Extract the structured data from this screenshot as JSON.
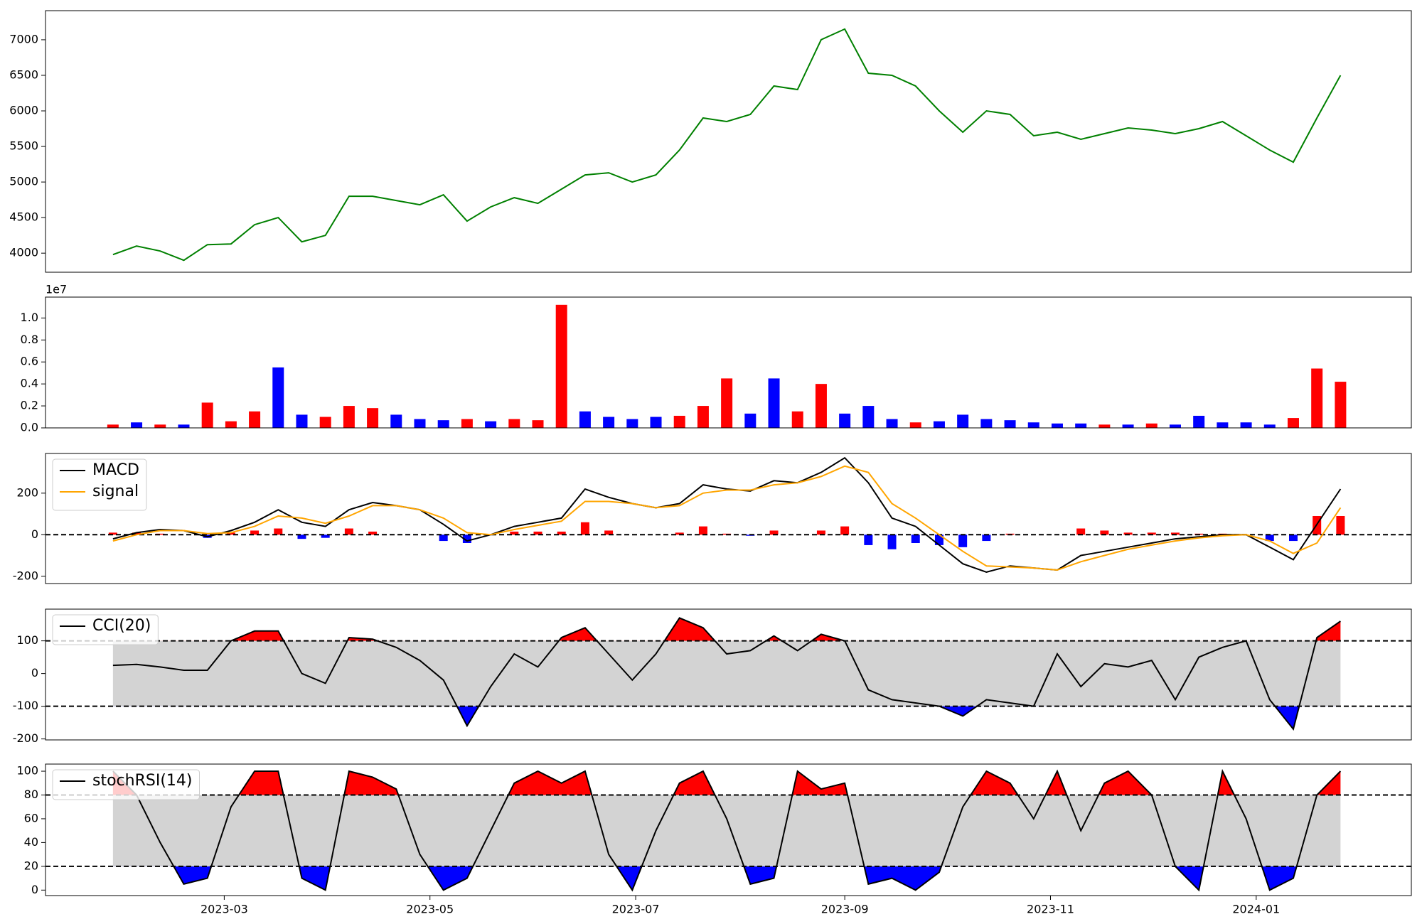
{
  "chart_data": [
    {
      "type": "line",
      "x": [
        "2023-01-27",
        "2023-02-03",
        "2023-02-10",
        "2023-02-17",
        "2023-02-24",
        "2023-03-03",
        "2023-03-10",
        "2023-03-17",
        "2023-03-24",
        "2023-03-31",
        "2023-04-07",
        "2023-04-14",
        "2023-04-21",
        "2023-04-28",
        "2023-05-05",
        "2023-05-12",
        "2023-05-19",
        "2023-05-26",
        "2023-06-02",
        "2023-06-09",
        "2023-06-16",
        "2023-06-23",
        "2023-06-30",
        "2023-07-07",
        "2023-07-14",
        "2023-07-21",
        "2023-07-28",
        "2023-08-04",
        "2023-08-11",
        "2023-08-18",
        "2023-08-25",
        "2023-09-01",
        "2023-09-08",
        "2023-09-15",
        "2023-09-22",
        "2023-09-29",
        "2023-10-06",
        "2023-10-13",
        "2023-10-20",
        "2023-10-27",
        "2023-11-03",
        "2023-11-10",
        "2023-11-17",
        "2023-11-24",
        "2023-12-01",
        "2023-12-08",
        "2023-12-15",
        "2023-12-22",
        "2023-12-29",
        "2024-01-05",
        "2024-01-12",
        "2024-01-19",
        "2024-01-26"
      ],
      "series": [
        {
          "color": "green",
          "values": [
            3980,
            4100,
            4030,
            3900,
            4120,
            4130,
            4400,
            4500,
            4160,
            4250,
            4800,
            4800,
            4740,
            4680,
            4820,
            4450,
            4650,
            4780,
            4700,
            4900,
            5100,
            5130,
            5000,
            5100,
            5450,
            5900,
            5850,
            5950,
            6350,
            6300,
            7000,
            7150,
            6530,
            6500,
            6350,
            6000,
            5700,
            6000,
            5950,
            5650,
            5700,
            5600,
            5680,
            5760,
            5730,
            5680,
            5750,
            5850,
            5650,
            5450,
            5280,
            5900,
            6500
          ]
        }
      ],
      "xlim": [
        "2023-01-07",
        "2024-02-16"
      ],
      "ylim": [
        3732,
        7409
      ],
      "yticks": [
        4000,
        4500,
        5000,
        5500,
        6000,
        6500,
        7000
      ]
    },
    {
      "type": "bar",
      "x": [
        "2023-01-27",
        "2023-02-03",
        "2023-02-10",
        "2023-02-17",
        "2023-02-24",
        "2023-03-03",
        "2023-03-10",
        "2023-03-17",
        "2023-03-24",
        "2023-03-31",
        "2023-04-07",
        "2023-04-14",
        "2023-04-21",
        "2023-04-28",
        "2023-05-05",
        "2023-05-12",
        "2023-05-19",
        "2023-05-26",
        "2023-06-02",
        "2023-06-09",
        "2023-06-16",
        "2023-06-23",
        "2023-06-30",
        "2023-07-07",
        "2023-07-14",
        "2023-07-21",
        "2023-07-28",
        "2023-08-04",
        "2023-08-11",
        "2023-08-18",
        "2023-08-25",
        "2023-09-01",
        "2023-09-08",
        "2023-09-15",
        "2023-09-22",
        "2023-09-29",
        "2023-10-06",
        "2023-10-13",
        "2023-10-20",
        "2023-10-27",
        "2023-11-03",
        "2023-11-10",
        "2023-11-17",
        "2023-11-24",
        "2023-12-01",
        "2023-12-08",
        "2023-12-15",
        "2023-12-22",
        "2023-12-29",
        "2024-01-05",
        "2024-01-12",
        "2024-01-19",
        "2024-01-26"
      ],
      "values": [
        0.03,
        0.05,
        0.03,
        0.03,
        0.23,
        0.06,
        0.15,
        0.55,
        0.12,
        0.1,
        0.2,
        0.18,
        0.12,
        0.08,
        0.07,
        0.08,
        0.06,
        0.08,
        0.07,
        1.12,
        0.15,
        0.1,
        0.08,
        0.1,
        0.11,
        0.2,
        0.45,
        0.13,
        0.45,
        0.15,
        0.4,
        0.13,
        0.2,
        0.08,
        0.05,
        0.06,
        0.12,
        0.08,
        0.07,
        0.05,
        0.04,
        0.04,
        0.03,
        0.03,
        0.04,
        0.03,
        0.11,
        0.05,
        0.05,
        0.03,
        0.09,
        0.54,
        0.42
      ],
      "colors": [
        "red",
        "blue",
        "red",
        "blue",
        "red",
        "red",
        "red",
        "blue",
        "blue",
        "red",
        "red",
        "red",
        "blue",
        "blue",
        "blue",
        "red",
        "blue",
        "red",
        "red",
        "red",
        "blue",
        "blue",
        "blue",
        "blue",
        "red",
        "red",
        "red",
        "blue",
        "blue",
        "red",
        "red",
        "blue",
        "blue",
        "blue",
        "red",
        "blue",
        "blue",
        "blue",
        "blue",
        "blue",
        "blue",
        "blue",
        "red",
        "blue",
        "red",
        "blue",
        "blue",
        "blue",
        "blue",
        "blue",
        "red",
        "red",
        "red"
      ],
      "offset_label": "1e7",
      "xlim": [
        "2023-01-07",
        "2024-02-16"
      ],
      "ylim": [
        0,
        1.19
      ],
      "yticks": [
        {
          "value": 0,
          "label": "0.0"
        },
        0.2,
        0.4,
        0.6,
        0.8,
        {
          "value": 1,
          "label": "1.0"
        }
      ]
    },
    {
      "type": "macd",
      "x": [
        "2023-01-27",
        "2023-02-03",
        "2023-02-10",
        "2023-02-17",
        "2023-02-24",
        "2023-03-03",
        "2023-03-10",
        "2023-03-17",
        "2023-03-24",
        "2023-03-31",
        "2023-04-07",
        "2023-04-14",
        "2023-04-21",
        "2023-04-28",
        "2023-05-05",
        "2023-05-12",
        "2023-05-19",
        "2023-05-26",
        "2023-06-02",
        "2023-06-09",
        "2023-06-16",
        "2023-06-23",
        "2023-06-30",
        "2023-07-07",
        "2023-07-14",
        "2023-07-21",
        "2023-07-28",
        "2023-08-04",
        "2023-08-11",
        "2023-08-18",
        "2023-08-25",
        "2023-09-01",
        "2023-09-08",
        "2023-09-15",
        "2023-09-22",
        "2023-09-29",
        "2023-10-06",
        "2023-10-13",
        "2023-10-20",
        "2023-10-27",
        "2023-11-03",
        "2023-11-10",
        "2023-11-17",
        "2023-11-24",
        "2023-12-01",
        "2023-12-08",
        "2023-12-15",
        "2023-12-22",
        "2023-12-29",
        "2024-01-05",
        "2024-01-12",
        "2024-01-19",
        "2024-01-26"
      ],
      "series": [
        {
          "name": "MACD",
          "color": "black",
          "values": [
            -20,
            10,
            25,
            20,
            -10,
            20,
            60,
            120,
            60,
            40,
            120,
            155,
            140,
            120,
            50,
            -30,
            0,
            40,
            60,
            80,
            220,
            180,
            150,
            130,
            150,
            240,
            220,
            210,
            260,
            250,
            300,
            370,
            250,
            80,
            40,
            -50,
            -140,
            -180,
            -150,
            -160,
            -170,
            -100,
            -80,
            -60,
            -40,
            -20,
            -10,
            0,
            0,
            -60,
            -120,
            50,
            220
          ]
        },
        {
          "name": "signal",
          "color": "orange",
          "values": [
            -30,
            0,
            20,
            20,
            5,
            10,
            40,
            90,
            80,
            55,
            90,
            140,
            140,
            120,
            80,
            10,
            0,
            25,
            45,
            65,
            160,
            160,
            150,
            130,
            140,
            200,
            215,
            215,
            240,
            250,
            280,
            330,
            300,
            150,
            80,
            0,
            -80,
            -150,
            -155,
            -160,
            -170,
            -130,
            -100,
            -70,
            -50,
            -30,
            -15,
            -5,
            0,
            -30,
            -90,
            -40,
            130
          ]
        }
      ],
      "histogram": {
        "up_color": "red",
        "down_color": "blue",
        "values": [
          10,
          10,
          5,
          0,
          -15,
          10,
          20,
          30,
          -20,
          -15,
          30,
          15,
          0,
          0,
          -30,
          -40,
          0,
          15,
          15,
          15,
          60,
          20,
          0,
          0,
          10,
          40,
          5,
          -5,
          20,
          0,
          20,
          40,
          -50,
          -70,
          -40,
          -50,
          -60,
          -30,
          5,
          0,
          0,
          30,
          20,
          10,
          10,
          10,
          5,
          5,
          0,
          -30,
          -30,
          90,
          90
        ]
      },
      "hline": 0,
      "legend": "upper left",
      "xlim": [
        "2023-01-07",
        "2024-02-16"
      ],
      "ylim": [
        -235,
        391
      ],
      "yticks": [
        -200,
        0,
        200
      ]
    },
    {
      "type": "oscillator",
      "x": [
        "2023-01-27",
        "2023-02-03",
        "2023-02-10",
        "2023-02-17",
        "2023-02-24",
        "2023-03-03",
        "2023-03-10",
        "2023-03-17",
        "2023-03-24",
        "2023-03-31",
        "2023-04-07",
        "2023-04-14",
        "2023-04-21",
        "2023-04-28",
        "2023-05-05",
        "2023-05-12",
        "2023-05-19",
        "2023-05-26",
        "2023-06-02",
        "2023-06-09",
        "2023-06-16",
        "2023-06-23",
        "2023-06-30",
        "2023-07-07",
        "2023-07-14",
        "2023-07-21",
        "2023-07-28",
        "2023-08-04",
        "2023-08-11",
        "2023-08-18",
        "2023-08-25",
        "2023-09-01",
        "2023-09-08",
        "2023-09-15",
        "2023-09-22",
        "2023-09-29",
        "2023-10-06",
        "2023-10-13",
        "2023-10-20",
        "2023-10-27",
        "2023-11-03",
        "2023-11-10",
        "2023-11-17",
        "2023-11-24",
        "2023-12-01",
        "2023-12-08",
        "2023-12-15",
        "2023-12-22",
        "2023-12-29",
        "2024-01-05",
        "2024-01-12",
        "2024-01-19",
        "2024-01-26"
      ],
      "series": [
        {
          "name": "CCI(20)",
          "color": "black",
          "values": [
            25,
            28,
            20,
            10,
            10,
            100,
            130,
            130,
            0,
            -30,
            110,
            105,
            80,
            40,
            -20,
            -160,
            -40,
            60,
            20,
            110,
            140,
            60,
            -20,
            60,
            170,
            140,
            60,
            70,
            115,
            70,
            120,
            100,
            -50,
            -80,
            -90,
            -100,
            -130,
            -80,
            -90,
            -100,
            60,
            -40,
            30,
            20,
            40,
            -80,
            50,
            80,
            100,
            -80,
            -170,
            110,
            160
          ]
        }
      ],
      "upper": 100,
      "lower": -100,
      "band_color": "lightgray",
      "upper_color": "red",
      "lower_color": "blue",
      "legend": "upper left",
      "xlim": [
        "2023-01-07",
        "2024-02-16"
      ],
      "ylim": [
        -203,
        197
      ],
      "yticks": [
        -200,
        -100,
        0,
        100
      ]
    },
    {
      "type": "oscillator",
      "x": [
        "2023-01-27",
        "2023-02-03",
        "2023-02-10",
        "2023-02-17",
        "2023-02-24",
        "2023-03-03",
        "2023-03-10",
        "2023-03-17",
        "2023-03-24",
        "2023-03-31",
        "2023-04-07",
        "2023-04-14",
        "2023-04-21",
        "2023-04-28",
        "2023-05-05",
        "2023-05-12",
        "2023-05-19",
        "2023-05-26",
        "2023-06-02",
        "2023-06-09",
        "2023-06-16",
        "2023-06-23",
        "2023-06-30",
        "2023-07-07",
        "2023-07-14",
        "2023-07-21",
        "2023-07-28",
        "2023-08-04",
        "2023-08-11",
        "2023-08-18",
        "2023-08-25",
        "2023-09-01",
        "2023-09-08",
        "2023-09-15",
        "2023-09-22",
        "2023-09-29",
        "2023-10-06",
        "2023-10-13",
        "2023-10-20",
        "2023-10-27",
        "2023-11-03",
        "2023-11-10",
        "2023-11-17",
        "2023-11-24",
        "2023-12-01",
        "2023-12-08",
        "2023-12-15",
        "2023-12-22",
        "2023-12-29",
        "2024-01-05",
        "2024-01-12",
        "2024-01-19",
        "2024-01-26"
      ],
      "series": [
        {
          "name": "stochRSI(14)",
          "color": "black",
          "values": [
            100,
            80,
            40,
            5,
            10,
            70,
            100,
            100,
            10,
            0,
            100,
            95,
            85,
            30,
            0,
            10,
            50,
            90,
            100,
            90,
            100,
            30,
            0,
            50,
            90,
            100,
            60,
            5,
            10,
            100,
            85,
            90,
            5,
            10,
            0,
            15,
            70,
            100,
            90,
            60,
            100,
            50,
            90,
            100,
            80,
            20,
            0,
            100,
            60,
            0,
            10,
            80,
            100
          ]
        }
      ],
      "upper": 80,
      "lower": 20,
      "band_color": "lightgray",
      "upper_color": "red",
      "lower_color": "blue",
      "legend": "upper left",
      "xlim": [
        "2023-01-07",
        "2024-02-16"
      ],
      "xticks": [
        {
          "value": "2023-03-01",
          "label": "2023-03"
        },
        {
          "value": "2023-05-01",
          "label": "2023-05"
        },
        {
          "value": "2023-07-01",
          "label": "2023-07"
        },
        {
          "value": "2023-09-01",
          "label": "2023-09"
        },
        {
          "value": "2023-11-01",
          "label": "2023-11"
        },
        {
          "value": "2024-01-01",
          "label": "2024-01"
        }
      ],
      "ylim": [
        -4.6,
        106
      ],
      "yticks": [
        0,
        20,
        40,
        60,
        80,
        100
      ]
    }
  ]
}
